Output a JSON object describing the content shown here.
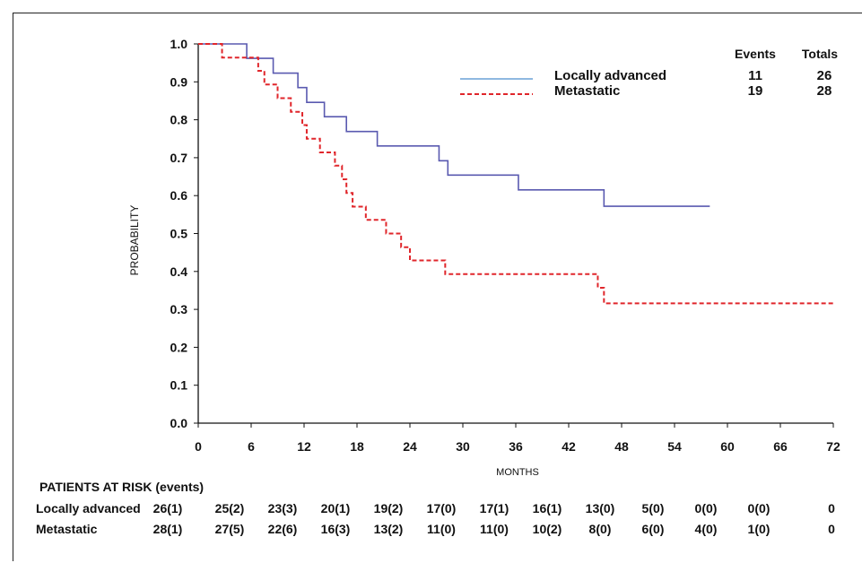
{
  "chart_data": {
    "type": "line",
    "subtype": "kaplan-meier-step",
    "xlabel": "MONTHS",
    "ylabel": "PROBABILITY",
    "xlim": [
      0,
      72
    ],
    "ylim": [
      0,
      1
    ],
    "x_ticks": [
      0,
      6,
      12,
      18,
      24,
      30,
      36,
      42,
      48,
      54,
      60,
      66,
      72
    ],
    "y_ticks": [
      "0.0",
      "0.1",
      "0.2",
      "0.3",
      "0.4",
      "0.5",
      "0.6",
      "0.7",
      "0.8",
      "0.9",
      "1.0"
    ],
    "grid": false,
    "legend_position": "top-right",
    "legend_headers": {
      "events": "Events",
      "totals": "Totals"
    },
    "series": [
      {
        "name": "Locally advanced",
        "color": "#5a5ab0",
        "style": "solid",
        "events": "11",
        "totals": "26",
        "steps": [
          [
            0,
            1.0
          ],
          [
            5.5,
            0.962
          ],
          [
            8.5,
            0.923
          ],
          [
            11.3,
            0.885
          ],
          [
            12.3,
            0.846
          ],
          [
            14.3,
            0.808
          ],
          [
            16.8,
            0.769
          ],
          [
            20.3,
            0.731
          ],
          [
            27.3,
            0.692
          ],
          [
            28.3,
            0.654
          ],
          [
            36.3,
            0.615
          ],
          [
            46.0,
            0.572
          ],
          [
            58.0,
            0.572
          ]
        ]
      },
      {
        "name": "Metastatic",
        "color": "#e0262b",
        "style": "dashed",
        "events": "19",
        "totals": "28",
        "steps": [
          [
            0,
            1.0
          ],
          [
            2.7,
            0.964
          ],
          [
            6.8,
            0.929
          ],
          [
            7.5,
            0.893
          ],
          [
            9.0,
            0.857
          ],
          [
            10.5,
            0.821
          ],
          [
            11.8,
            0.786
          ],
          [
            12.3,
            0.75
          ],
          [
            13.8,
            0.714
          ],
          [
            15.5,
            0.679
          ],
          [
            16.3,
            0.643
          ],
          [
            16.8,
            0.607
          ],
          [
            17.5,
            0.571
          ],
          [
            19.0,
            0.536
          ],
          [
            21.3,
            0.5
          ],
          [
            23.0,
            0.464
          ],
          [
            24.0,
            0.429
          ],
          [
            28.0,
            0.393
          ],
          [
            45.3,
            0.357
          ],
          [
            46.0,
            0.316
          ],
          [
            72.0,
            0.316
          ]
        ]
      }
    ]
  },
  "risk_table": {
    "title": "PATIENTS AT RISK (events)",
    "time_points": [
      0,
      6,
      12,
      18,
      24,
      30,
      36,
      42,
      48,
      54,
      60,
      66,
      72
    ],
    "rows": [
      {
        "label": "Locally advanced",
        "values": [
          "26(1)",
          "25(2)",
          "23(3)",
          "20(1)",
          "19(2)",
          "17(0)",
          "17(1)",
          "16(1)",
          "13(0)",
          "5(0)",
          "0(0)",
          "0(0)",
          "0"
        ]
      },
      {
        "label": "Metastatic",
        "values": [
          "28(1)",
          "27(5)",
          "22(6)",
          "16(3)",
          "13(2)",
          "11(0)",
          "11(0)",
          "10(2)",
          "8(0)",
          "6(0)",
          "4(0)",
          "1(0)",
          "0"
        ]
      }
    ]
  }
}
